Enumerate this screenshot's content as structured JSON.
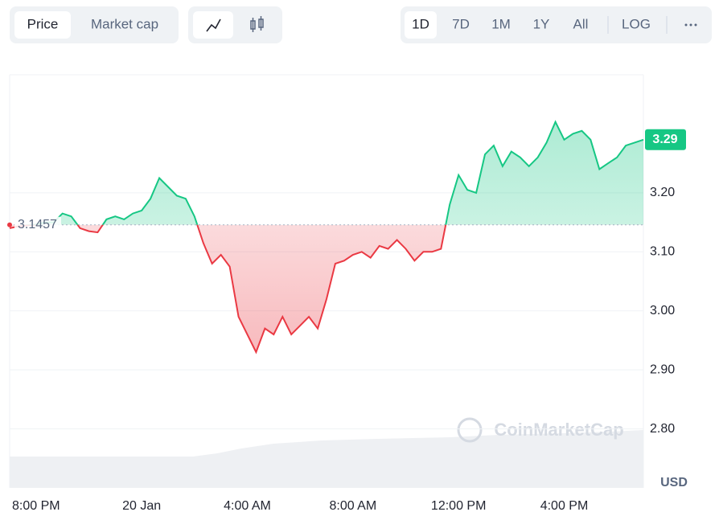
{
  "toolbar": {
    "view_tabs": [
      "Price",
      "Market cap"
    ],
    "range_tabs": [
      "1D",
      "7D",
      "1M",
      "1Y",
      "All"
    ],
    "scale_button": "LOG"
  },
  "chart_data": {
    "type": "line",
    "categories": [
      null,
      null,
      null,
      "8:00 PM",
      null,
      null,
      null,
      null,
      null,
      null,
      null,
      null,
      null,
      null,
      null,
      "20 Jan",
      null,
      null,
      null,
      null,
      null,
      null,
      null,
      null,
      null,
      null,
      null,
      "4:00 AM",
      null,
      null,
      null,
      null,
      null,
      null,
      null,
      null,
      null,
      null,
      null,
      "8:00 AM",
      null,
      null,
      null,
      null,
      null,
      null,
      null,
      null,
      null,
      null,
      null,
      "12:00 PM",
      null,
      null,
      null,
      null,
      null,
      null,
      null,
      null,
      null,
      null,
      null,
      "4:00 PM",
      null,
      null,
      null,
      null,
      null,
      null,
      null,
      null,
      null
    ],
    "values": [
      3.14,
      3.143,
      3.145,
      3.146,
      3.15,
      3.15,
      3.165,
      3.16,
      3.14,
      3.135,
      3.133,
      3.155,
      3.16,
      3.155,
      3.165,
      3.17,
      3.19,
      3.225,
      3.21,
      3.195,
      3.19,
      3.16,
      3.115,
      3.08,
      3.095,
      3.075,
      2.99,
      2.96,
      2.93,
      2.97,
      2.96,
      2.99,
      2.96,
      2.975,
      2.99,
      2.97,
      3.02,
      3.08,
      3.085,
      3.095,
      3.1,
      3.09,
      3.11,
      3.105,
      3.12,
      3.105,
      3.085,
      3.1,
      3.1,
      3.105,
      3.18,
      3.23,
      3.205,
      3.2,
      3.265,
      3.28,
      3.245,
      3.27,
      3.26,
      3.245,
      3.26,
      3.285,
      3.32,
      3.29,
      3.3,
      3.305,
      3.29,
      3.24,
      3.25,
      3.26,
      3.28,
      3.285,
      3.29
    ],
    "baseline": 3.1457,
    "current_price": 3.29,
    "color_up": "#16c784",
    "color_down": "#ea3943",
    "ylim": [
      2.7,
      3.4
    ],
    "yticks": [
      {
        "value": 2.8,
        "label": "2.80"
      },
      {
        "value": 2.9,
        "label": "2.90"
      },
      {
        "value": 3.0,
        "label": "3.00"
      },
      {
        "value": 3.1,
        "label": "3.10"
      },
      {
        "value": 3.2,
        "label": "3.20"
      }
    ],
    "grid": true,
    "currency": "USD",
    "watermark": "CoinMarketCap"
  }
}
